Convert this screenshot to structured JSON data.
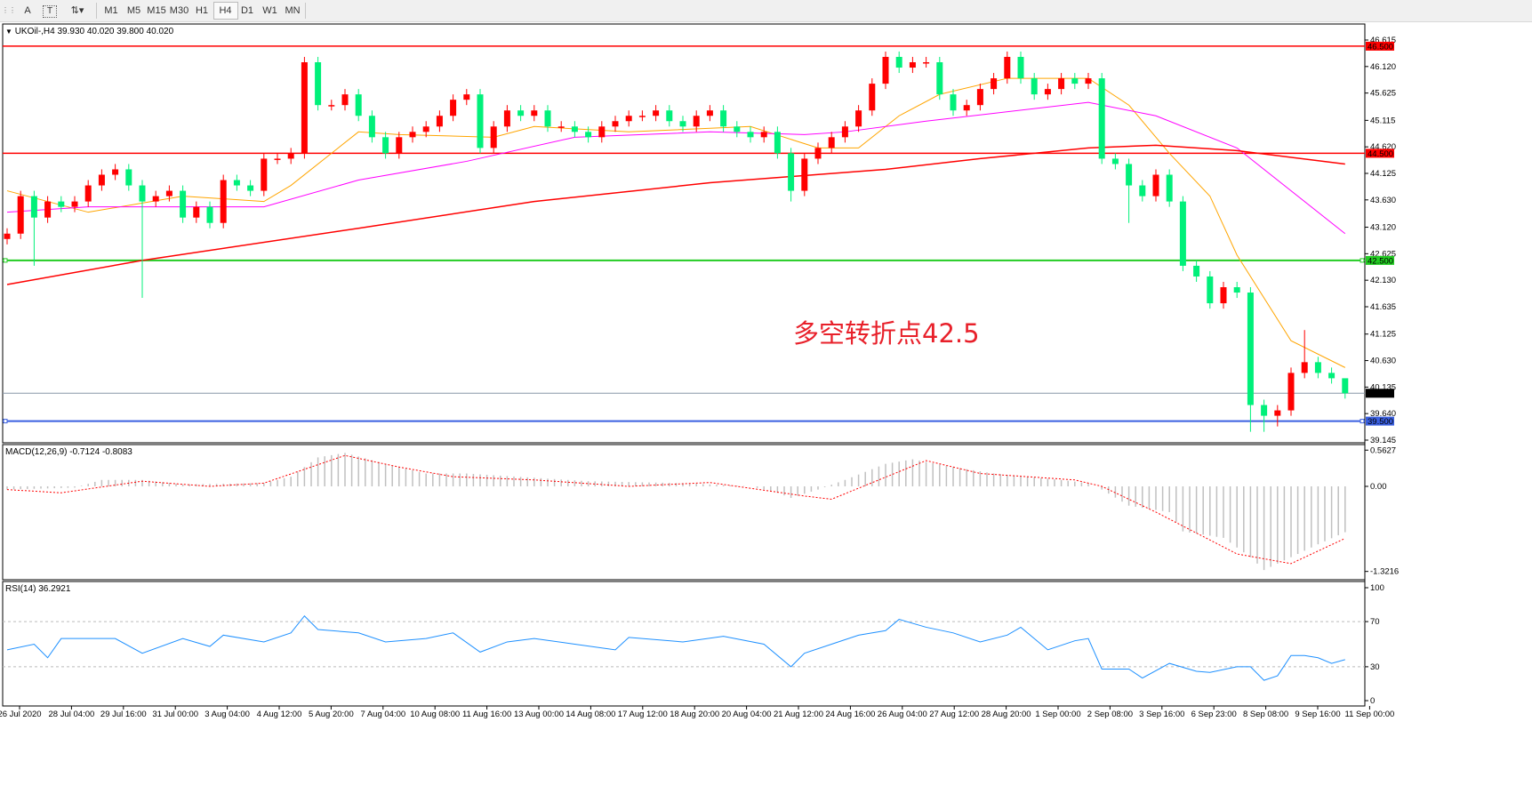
{
  "toolbar": {
    "icons": [
      "crosshair-grid-icon",
      "text-icon",
      "text-label-icon",
      "arrows-icon"
    ],
    "text_tool": "A",
    "timeframes": [
      "M1",
      "M5",
      "M15",
      "M30",
      "H1",
      "H4",
      "D1",
      "W1",
      "MN"
    ],
    "active_timeframe": "H4"
  },
  "header": {
    "symbol_info": "UKOil-,H4  39.930 40.020 39.800 40.020"
  },
  "annotation": "多空转折点42.5",
  "colors": {
    "bull_candle": "#ff0000",
    "bear_candle": "#00f07a",
    "ma_fast": "#ffa500",
    "ma_mid": "#ff00ff",
    "ma_slow": "#ff0000",
    "macd_hist": "#c0c0c0",
    "macd_signal": "#ff0000",
    "rsi_line": "#1e90ff"
  },
  "chart_data": [
    {
      "type": "candlestick",
      "title": "UKOil-,H4",
      "y_ticks": [
        "46.615",
        "46.120",
        "45.625",
        "45.115",
        "44.620",
        "44.125",
        "43.630",
        "43.120",
        "42.625",
        "42.130",
        "41.635",
        "41.125",
        "40.630",
        "40.135",
        "39.640",
        "39.145"
      ],
      "ylim": [
        39.145,
        46.615
      ],
      "x_ticks": [
        "26 Jul 2020",
        "28 Jul 04:00",
        "29 Jul 16:00",
        "31 Jul 00:00",
        "3 Aug 04:00",
        "4 Aug 12:00",
        "5 Aug 20:00",
        "7 Aug 04:00",
        "10 Aug 08:00",
        "11 Aug 16:00",
        "13 Aug 00:00",
        "14 Aug 08:00",
        "17 Aug 12:00",
        "18 Aug 20:00",
        "20 Aug 04:00",
        "21 Aug 12:00",
        "24 Aug 16:00",
        "26 Aug 04:00",
        "27 Aug 12:00",
        "28 Aug 20:00",
        "1 Sep 00:00",
        "2 Sep 08:00",
        "3 Sep 16:00",
        "6 Sep 23:00",
        "8 Sep 08:00",
        "9 Sep 16:00",
        "11 Sep 00:00"
      ],
      "closes": [
        43.0,
        43.7,
        43.3,
        43.6,
        43.5,
        43.6,
        43.9,
        44.1,
        44.2,
        43.9,
        43.6,
        43.7,
        43.8,
        43.3,
        43.5,
        43.2,
        44.0,
        43.9,
        43.8,
        44.4,
        44.4,
        44.5,
        46.2,
        45.4,
        45.4,
        45.6,
        45.2,
        44.8,
        44.5,
        44.8,
        44.9,
        45.0,
        45.2,
        45.5,
        45.6,
        44.6,
        45.0,
        45.3,
        45.2,
        45.3,
        45.0,
        45.0,
        44.9,
        44.8,
        45.0,
        45.1,
        45.2,
        45.2,
        45.3,
        45.1,
        45.0,
        45.2,
        45.3,
        45.0,
        44.9,
        44.8,
        44.9,
        44.5,
        43.8,
        44.4,
        44.6,
        44.8,
        45.0,
        45.3,
        45.8,
        46.3,
        46.1,
        46.2,
        46.2,
        45.6,
        45.3,
        45.4,
        45.7,
        45.9,
        46.3,
        45.9,
        45.6,
        45.7,
        45.9,
        45.8,
        45.9,
        44.4,
        44.3,
        43.9,
        43.7,
        44.1,
        43.6,
        42.4,
        42.2,
        41.7,
        42.0,
        41.9,
        39.8,
        39.6,
        39.7,
        40.4,
        40.6,
        40.4,
        40.3,
        40.02
      ],
      "first_open": 42.9,
      "wick_lows": {
        "2": 42.4,
        "10": 41.8,
        "58": 43.6,
        "83": 43.2,
        "92": 39.3,
        "93": 39.3,
        "94": 39.4
      },
      "wick_highs": {
        "22": 46.3,
        "65": 46.4,
        "74": 46.4,
        "96": 41.2,
        "99": 40.1
      },
      "last_price": 40.02,
      "moving_averages": [
        {
          "role": "fast",
          "points": [
            [
              0,
              43.8
            ],
            [
              6,
              43.4
            ],
            [
              13,
              43.7
            ],
            [
              19,
              43.6
            ],
            [
              21,
              43.9
            ],
            [
              26,
              44.9
            ],
            [
              29,
              44.85
            ],
            [
              36,
              44.8
            ],
            [
              39,
              45.0
            ],
            [
              46,
              44.9
            ],
            [
              55,
              45.0
            ],
            [
              60,
              44.6
            ],
            [
              63,
              44.6
            ],
            [
              66,
              45.2
            ],
            [
              69,
              45.6
            ],
            [
              74,
              45.9
            ],
            [
              80,
              45.9
            ],
            [
              83,
              45.4
            ],
            [
              86,
              44.5
            ],
            [
              89,
              43.7
            ],
            [
              91,
              42.6
            ],
            [
              95,
              41.0
            ],
            [
              99,
              40.5
            ]
          ]
        },
        {
          "role": "mid",
          "points": [
            [
              0,
              43.4
            ],
            [
              6,
              43.5
            ],
            [
              19,
              43.5
            ],
            [
              26,
              44.0
            ],
            [
              34,
              44.35
            ],
            [
              42,
              44.8
            ],
            [
              52,
              44.9
            ],
            [
              59,
              44.85
            ],
            [
              62,
              44.9
            ],
            [
              68,
              45.1
            ],
            [
              80,
              45.45
            ],
            [
              85,
              45.2
            ],
            [
              91,
              44.6
            ],
            [
              99,
              43.0
            ]
          ]
        },
        {
          "role": "slow",
          "points": [
            [
              0,
              42.05
            ],
            [
              10,
              42.5
            ],
            [
              26,
              43.1
            ],
            [
              39,
              43.6
            ],
            [
              52,
              43.95
            ],
            [
              65,
              44.2
            ],
            [
              72,
              44.4
            ],
            [
              80,
              44.6
            ],
            [
              85,
              44.65
            ],
            [
              91,
              44.55
            ],
            [
              99,
              44.3
            ]
          ]
        }
      ],
      "horizontal_lines": [
        {
          "price": 46.5,
          "label": "46.500",
          "color": "#ff0000"
        },
        {
          "price": 44.5,
          "label": "44.500",
          "color": "#ff0000"
        },
        {
          "price": 42.5,
          "label": "42.500",
          "color": "#22cc22"
        },
        {
          "price": 39.5,
          "label": "39.500",
          "color": "#3a5fe0"
        }
      ],
      "current_price_label": "40.020"
    },
    {
      "type": "bar+line",
      "title": "MACD(12,26,9) -0.7124 -0.8083",
      "y_ticks": [
        "0.5627",
        "0.00",
        "-1.3216"
      ],
      "ylim": [
        -1.3216,
        0.5627
      ],
      "main": [
        [
          0,
          -0.05
        ],
        [
          5,
          -0.02
        ],
        [
          7,
          0.1
        ],
        [
          10,
          0.1
        ],
        [
          13,
          0.03
        ],
        [
          19,
          0.05
        ],
        [
          21,
          0.15
        ],
        [
          23,
          0.45
        ],
        [
          25,
          0.52
        ],
        [
          28,
          0.35
        ],
        [
          31,
          0.2
        ],
        [
          34,
          0.2
        ],
        [
          40,
          0.12
        ],
        [
          43,
          0.08
        ],
        [
          50,
          0.05
        ],
        [
          55,
          0.0
        ],
        [
          57,
          -0.1
        ],
        [
          58,
          -0.18
        ],
        [
          60,
          -0.05
        ],
        [
          62,
          0.1
        ],
        [
          65,
          0.35
        ],
        [
          67,
          0.42
        ],
        [
          70,
          0.3
        ],
        [
          73,
          0.2
        ],
        [
          78,
          0.1
        ],
        [
          80,
          0.05
        ],
        [
          81,
          -0.05
        ],
        [
          83,
          -0.3
        ],
        [
          86,
          -0.4
        ],
        [
          87,
          -0.7
        ],
        [
          90,
          -0.8
        ],
        [
          92,
          -1.1
        ],
        [
          93,
          -1.3
        ],
        [
          95,
          -1.1
        ],
        [
          97,
          -0.9
        ],
        [
          99,
          -0.7124
        ]
      ],
      "signal": [
        [
          0,
          -0.05
        ],
        [
          4,
          -0.1
        ],
        [
          10,
          0.08
        ],
        [
          15,
          0.0
        ],
        [
          19,
          0.05
        ],
        [
          25,
          0.48
        ],
        [
          29,
          0.3
        ],
        [
          33,
          0.15
        ],
        [
          39,
          0.1
        ],
        [
          46,
          0.0
        ],
        [
          52,
          0.06
        ],
        [
          59,
          -0.15
        ],
        [
          61,
          -0.2
        ],
        [
          68,
          0.4
        ],
        [
          72,
          0.2
        ],
        [
          79,
          0.1
        ],
        [
          81,
          0.0
        ],
        [
          85,
          -0.4
        ],
        [
          91,
          -1.05
        ],
        [
          95,
          -1.2
        ],
        [
          99,
          -0.8083
        ]
      ]
    },
    {
      "type": "line",
      "title": "RSI(14) 36.2921",
      "y_ticks": [
        "100",
        "70",
        "30",
        "0"
      ],
      "ylim": [
        0,
        100
      ],
      "levels": [
        70,
        30
      ],
      "values": [
        [
          0,
          45
        ],
        [
          2,
          50
        ],
        [
          3,
          38
        ],
        [
          4,
          55
        ],
        [
          8,
          55
        ],
        [
          10,
          42
        ],
        [
          13,
          55
        ],
        [
          15,
          48
        ],
        [
          16,
          58
        ],
        [
          19,
          52
        ],
        [
          21,
          60
        ],
        [
          22,
          75
        ],
        [
          23,
          63
        ],
        [
          26,
          60
        ],
        [
          28,
          52
        ],
        [
          31,
          55
        ],
        [
          33,
          60
        ],
        [
          35,
          43
        ],
        [
          37,
          52
        ],
        [
          39,
          55
        ],
        [
          42,
          50
        ],
        [
          45,
          45
        ],
        [
          46,
          56
        ],
        [
          50,
          52
        ],
        [
          53,
          57
        ],
        [
          56,
          50
        ],
        [
          58,
          30
        ],
        [
          59,
          42
        ],
        [
          61,
          50
        ],
        [
          63,
          58
        ],
        [
          65,
          62
        ],
        [
          66,
          72
        ],
        [
          68,
          65
        ],
        [
          70,
          60
        ],
        [
          72,
          52
        ],
        [
          74,
          58
        ],
        [
          75,
          65
        ],
        [
          77,
          45
        ],
        [
          79,
          53
        ],
        [
          80,
          55
        ],
        [
          81,
          28
        ],
        [
          83,
          28
        ],
        [
          84,
          20
        ],
        [
          86,
          33
        ],
        [
          88,
          26
        ],
        [
          89,
          25
        ],
        [
          91,
          30
        ],
        [
          92,
          30
        ],
        [
          93,
          18
        ],
        [
          94,
          22
        ],
        [
          95,
          40
        ],
        [
          96,
          40
        ],
        [
          97,
          38
        ],
        [
          98,
          33
        ],
        [
          99,
          36.2921
        ]
      ]
    }
  ]
}
